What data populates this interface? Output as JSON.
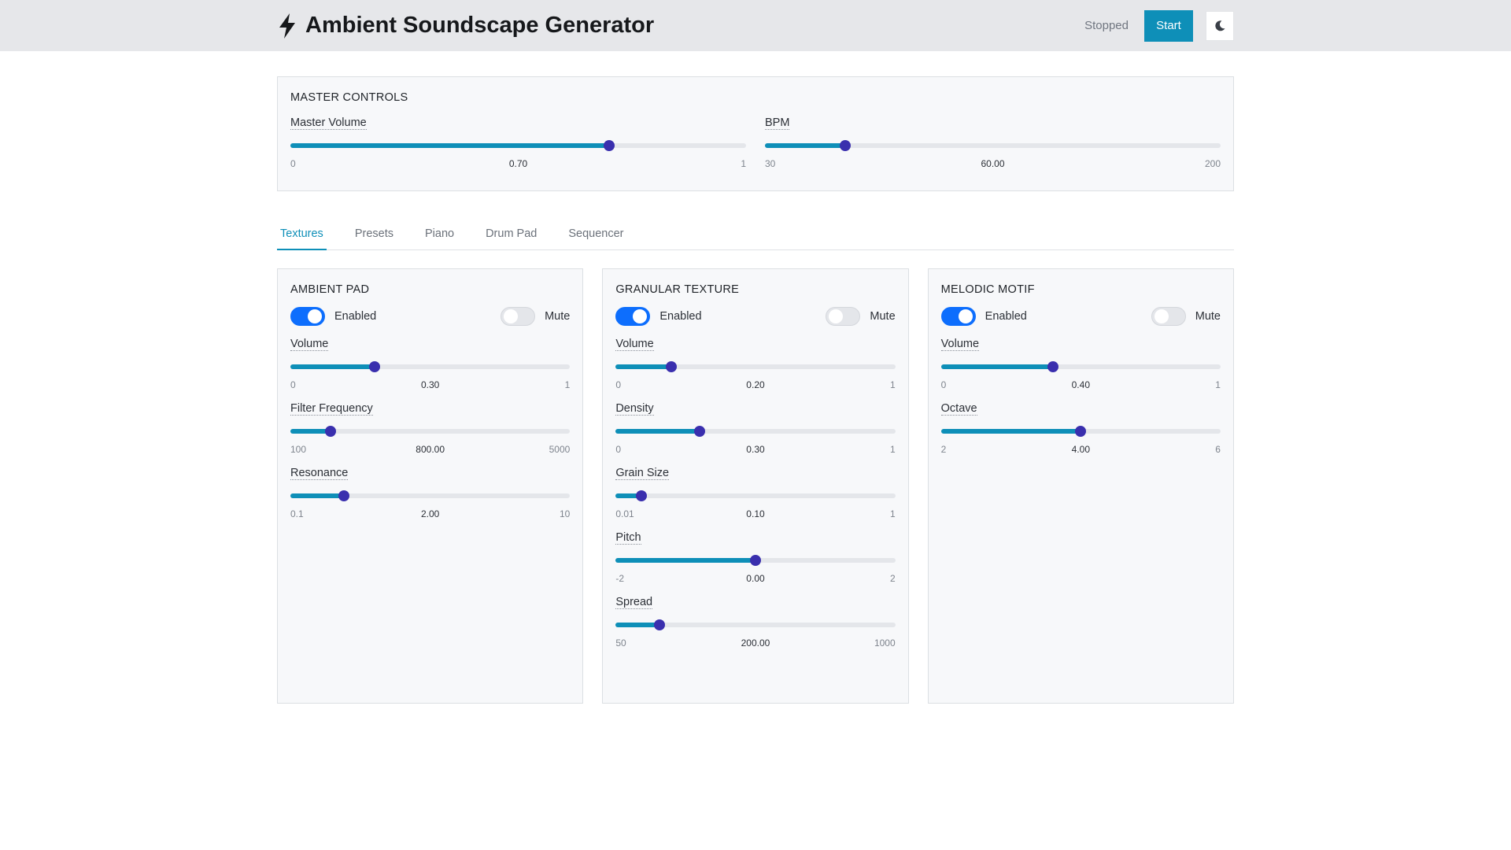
{
  "header": {
    "title": "Ambient Soundscape Generator",
    "status": "Stopped",
    "start_label": "Start",
    "logo_icon": "bolt-icon",
    "theme_icon": "moon-icon"
  },
  "colors": {
    "accent": "#0e8fb8",
    "thumb": "#3a2fae",
    "toggle_on": "#0d6efd"
  },
  "master": {
    "title": "MASTER CONTROLS",
    "sliders": [
      {
        "label": "Master Volume",
        "min": "0",
        "max": "1",
        "value": "0.70",
        "fraction": 0.7
      },
      {
        "label": "BPM",
        "min": "30",
        "max": "200",
        "value": "60.00",
        "fraction": 0.1765
      }
    ]
  },
  "tabs": [
    {
      "label": "Textures",
      "active": true
    },
    {
      "label": "Presets"
    },
    {
      "label": "Piano"
    },
    {
      "label": "Drum Pad"
    },
    {
      "label": "Sequencer"
    }
  ],
  "cards": [
    {
      "title": "AMBIENT PAD",
      "enabled_label": "Enabled",
      "mute_label": "Mute",
      "enabled": true,
      "muted": false,
      "sliders": [
        {
          "label": "Volume",
          "min": "0",
          "max": "1",
          "value": "0.30",
          "fraction": 0.3
        },
        {
          "label": "Filter Frequency",
          "min": "100",
          "max": "5000",
          "value": "800.00",
          "fraction": 0.1429
        },
        {
          "label": "Resonance",
          "min": "0.1",
          "max": "10",
          "value": "2.00",
          "fraction": 0.1919
        }
      ]
    },
    {
      "title": "GRANULAR TEXTURE",
      "enabled_label": "Enabled",
      "mute_label": "Mute",
      "enabled": true,
      "muted": false,
      "sliders": [
        {
          "label": "Volume",
          "min": "0",
          "max": "1",
          "value": "0.20",
          "fraction": 0.2
        },
        {
          "label": "Density",
          "min": "0",
          "max": "1",
          "value": "0.30",
          "fraction": 0.3
        },
        {
          "label": "Grain Size",
          "min": "0.01",
          "max": "1",
          "value": "0.10",
          "fraction": 0.0909
        },
        {
          "label": "Pitch",
          "min": "-2",
          "max": "2",
          "value": "0.00",
          "fraction": 0.5
        },
        {
          "label": "Spread",
          "min": "50",
          "max": "1000",
          "value": "200.00",
          "fraction": 0.1579
        }
      ]
    },
    {
      "title": "MELODIC MOTIF",
      "enabled_label": "Enabled",
      "mute_label": "Mute",
      "enabled": true,
      "muted": false,
      "sliders": [
        {
          "label": "Volume",
          "min": "0",
          "max": "1",
          "value": "0.40",
          "fraction": 0.4
        },
        {
          "label": "Octave",
          "min": "2",
          "max": "6",
          "value": "4.00",
          "fraction": 0.5
        }
      ]
    }
  ]
}
